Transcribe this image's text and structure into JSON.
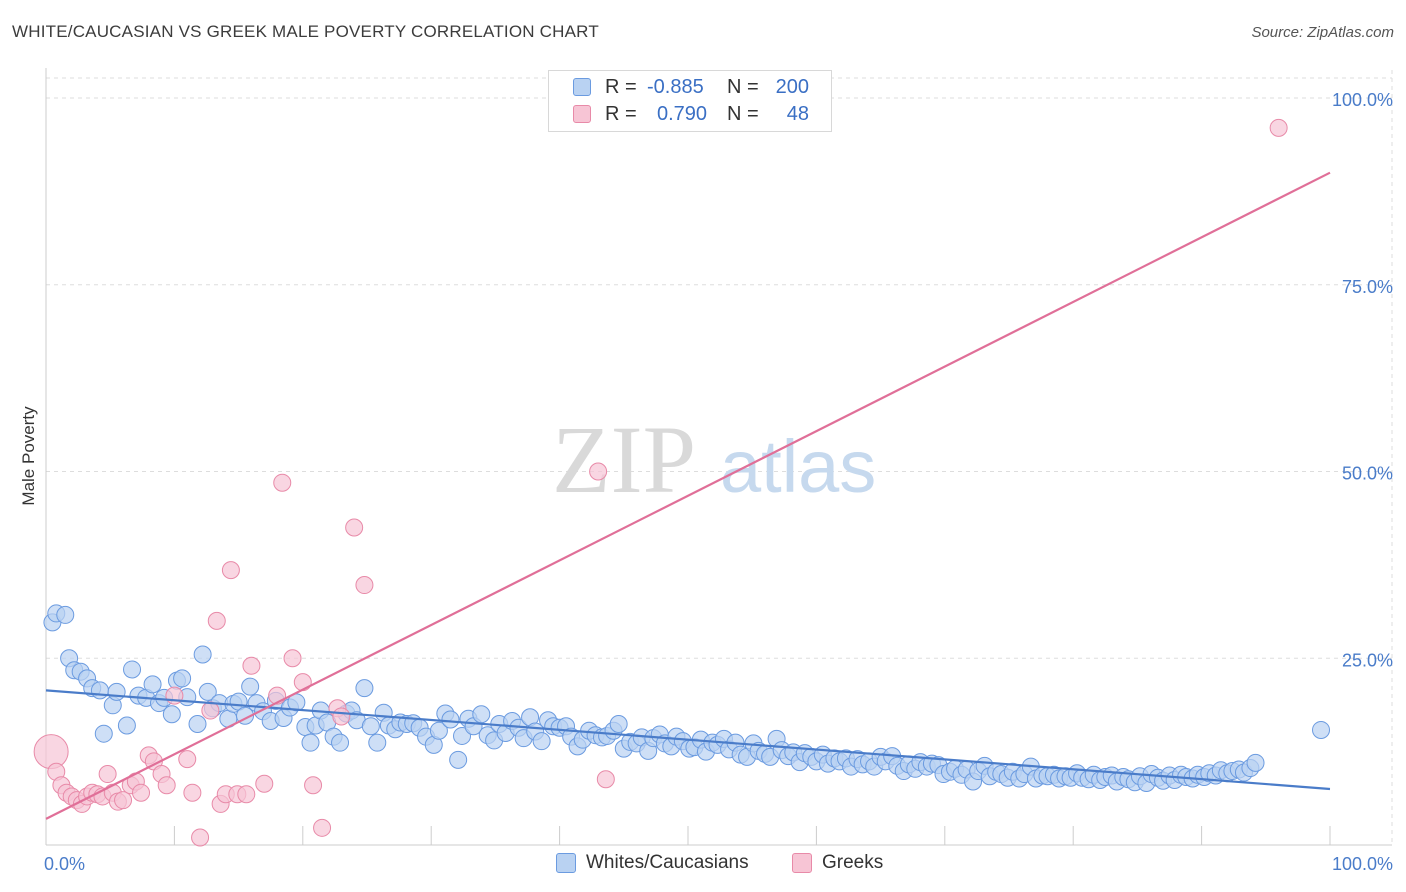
{
  "title": "WHITE/CAUCASIAN VS GREEK MALE POVERTY CORRELATION CHART",
  "source": "Source: ZipAtlas.com",
  "watermark": {
    "zip": "ZIP",
    "atlas": "atlas"
  },
  "legend_top": {
    "rows": [
      {
        "r_label": "R =",
        "r_value": "-0.885",
        "n_label": "N =",
        "n_value": "200",
        "color": "#6b9be0"
      },
      {
        "r_label": "R =",
        "r_value": "0.790",
        "n_label": "N =",
        "n_value": "48",
        "color": "#e88aa8"
      }
    ]
  },
  "legend_bottom": [
    {
      "label": "Whites/Caucasians",
      "fill": "#b9d2f2",
      "stroke": "#6b9be0"
    },
    {
      "label": "Greeks",
      "fill": "#f7c5d5",
      "stroke": "#e88aa8"
    }
  ],
  "chart_data": {
    "type": "scatter",
    "ylabel": "Male Poverty",
    "xlim": [
      0,
      100
    ],
    "ylim": [
      0,
      100
    ],
    "x_tick_labels": [
      "0.0%",
      "100.0%"
    ],
    "y_tick_labels": [
      "25.0%",
      "50.0%",
      "75.0%",
      "100.0%"
    ],
    "y_ticks": [
      25,
      50,
      75,
      100
    ],
    "grid": true,
    "series": [
      {
        "name": "Whites/Caucasians",
        "color": "#4a7cc9",
        "fill": "#b9d2f2",
        "trend": {
          "x": [
            0,
            100
          ],
          "y": [
            20.7,
            7.5
          ]
        },
        "points": [
          [
            0.5,
            29.8
          ],
          [
            0.8,
            31
          ],
          [
            1.5,
            30.8
          ],
          [
            1.8,
            25
          ],
          [
            2.2,
            23.4
          ],
          [
            2.7,
            23.2
          ],
          [
            3.2,
            22.3
          ],
          [
            3.6,
            21
          ],
          [
            4.2,
            20.7
          ],
          [
            4.5,
            14.9
          ],
          [
            5.2,
            18.7
          ],
          [
            5.5,
            20.5
          ],
          [
            6.3,
            16
          ],
          [
            6.7,
            23.5
          ],
          [
            7.2,
            20
          ],
          [
            7.8,
            19.7
          ],
          [
            8.3,
            21.5
          ],
          [
            8.8,
            19
          ],
          [
            9.2,
            19.7
          ],
          [
            9.8,
            17.5
          ],
          [
            10.2,
            22
          ],
          [
            10.6,
            22.3
          ],
          [
            11,
            19.8
          ],
          [
            11.8,
            16.2
          ],
          [
            12.2,
            25.5
          ],
          [
            12.6,
            20.5
          ],
          [
            13,
            18.3
          ],
          [
            13.5,
            19
          ],
          [
            14.2,
            16.9
          ],
          [
            14.6,
            18.9
          ],
          [
            15,
            19.2
          ],
          [
            15.5,
            17.3
          ],
          [
            15.9,
            21.2
          ],
          [
            16.4,
            19
          ],
          [
            16.9,
            17.9
          ],
          [
            17.5,
            16.6
          ],
          [
            17.9,
            19.3
          ],
          [
            18.5,
            17
          ],
          [
            19,
            18.4
          ],
          [
            19.5,
            19.1
          ],
          [
            20.2,
            15.8
          ],
          [
            20.6,
            13.7
          ],
          [
            21,
            16
          ],
          [
            21.4,
            18
          ],
          [
            21.9,
            16.4
          ],
          [
            22.4,
            14.5
          ],
          [
            22.9,
            13.7
          ],
          [
            23.4,
            17.6
          ],
          [
            23.8,
            18
          ],
          [
            24.2,
            16.7
          ],
          [
            24.8,
            21
          ],
          [
            25.3,
            15.9
          ],
          [
            25.8,
            13.7
          ],
          [
            26.3,
            17.7
          ],
          [
            26.7,
            16
          ],
          [
            27.2,
            15.5
          ],
          [
            27.6,
            16.4
          ],
          [
            28.1,
            16.2
          ],
          [
            28.6,
            16.3
          ],
          [
            29.1,
            15.7
          ],
          [
            29.6,
            14.5
          ],
          [
            30.2,
            13.4
          ],
          [
            30.6,
            15.3
          ],
          [
            31.1,
            17.6
          ],
          [
            31.5,
            16.8
          ],
          [
            32.1,
            11.4
          ],
          [
            32.4,
            14.6
          ],
          [
            32.9,
            16.9
          ],
          [
            33.3,
            15.9
          ],
          [
            33.9,
            17.5
          ],
          [
            34.4,
            14.7
          ],
          [
            34.9,
            14
          ],
          [
            35.3,
            16.2
          ],
          [
            35.8,
            15
          ],
          [
            36.3,
            16.6
          ],
          [
            36.8,
            15.7
          ],
          [
            37.2,
            14.3
          ],
          [
            37.7,
            17.1
          ],
          [
            38.1,
            15.2
          ],
          [
            38.6,
            13.9
          ],
          [
            39.1,
            16.7
          ],
          [
            39.5,
            15.9
          ],
          [
            40,
            15.7
          ],
          [
            40.5,
            15.9
          ],
          [
            40.9,
            14.5
          ],
          [
            41.4,
            13.2
          ],
          [
            41.8,
            14.1
          ],
          [
            42.3,
            15.3
          ],
          [
            42.8,
            14.7
          ],
          [
            43.3,
            14.4
          ],
          [
            43.7,
            14.6
          ],
          [
            44.2,
            15.3
          ],
          [
            44.6,
            16.2
          ],
          [
            45,
            12.9
          ],
          [
            45.5,
            13.8
          ],
          [
            46,
            13.6
          ],
          [
            46.4,
            14.4
          ],
          [
            46.9,
            12.6
          ],
          [
            47.3,
            14.3
          ],
          [
            47.8,
            14.8
          ],
          [
            48.2,
            13.6
          ],
          [
            48.7,
            13.2
          ],
          [
            49.1,
            14.5
          ],
          [
            49.6,
            13.9
          ],
          [
            50.1,
            12.9
          ],
          [
            50.5,
            13.1
          ],
          [
            51,
            14.1
          ],
          [
            51.4,
            12.5
          ],
          [
            51.9,
            13.7
          ],
          [
            52.3,
            13.4
          ],
          [
            52.8,
            14.2
          ],
          [
            53.2,
            12.8
          ],
          [
            53.7,
            13.7
          ],
          [
            54.1,
            12.1
          ],
          [
            54.6,
            11.8
          ],
          [
            55.1,
            13.6
          ],
          [
            55.5,
            12.6
          ],
          [
            56,
            12.2
          ],
          [
            56.4,
            11.8
          ],
          [
            56.9,
            14.2
          ],
          [
            57.3,
            12.7
          ],
          [
            57.8,
            11.9
          ],
          [
            58.2,
            12.4
          ],
          [
            58.7,
            11.1
          ],
          [
            59.1,
            12.3
          ],
          [
            59.6,
            11.8
          ],
          [
            60,
            11.2
          ],
          [
            60.5,
            12.1
          ],
          [
            60.9,
            10.9
          ],
          [
            61.4,
            11.6
          ],
          [
            61.8,
            11.2
          ],
          [
            62.3,
            11.6
          ],
          [
            62.7,
            10.5
          ],
          [
            63.2,
            11.5
          ],
          [
            63.6,
            10.8
          ],
          [
            64.1,
            11.2
          ],
          [
            64.5,
            10.5
          ],
          [
            65,
            11.8
          ],
          [
            65.4,
            11.2
          ],
          [
            65.9,
            11.9
          ],
          [
            66.3,
            10.6
          ],
          [
            66.8,
            9.9
          ],
          [
            67.2,
            10.8
          ],
          [
            67.7,
            10.2
          ],
          [
            68.1,
            11.1
          ],
          [
            68.6,
            10.5
          ],
          [
            69,
            10.9
          ],
          [
            69.5,
            10.7
          ],
          [
            69.9,
            9.5
          ],
          [
            70.4,
            9.8
          ],
          [
            70.8,
            10.2
          ],
          [
            71.3,
            9.4
          ],
          [
            71.7,
            10.1
          ],
          [
            72.2,
            8.5
          ],
          [
            72.6,
            9.9
          ],
          [
            73.1,
            10.6
          ],
          [
            73.5,
            9.2
          ],
          [
            74,
            9.8
          ],
          [
            74.4,
            9.5
          ],
          [
            74.9,
            9
          ],
          [
            75.3,
            9.8
          ],
          [
            75.8,
            8.9
          ],
          [
            76.2,
            9.5
          ],
          [
            76.7,
            10.5
          ],
          [
            77.1,
            8.9
          ],
          [
            77.6,
            9.3
          ],
          [
            78,
            9.2
          ],
          [
            78.5,
            9.4
          ],
          [
            78.9,
            8.9
          ],
          [
            79.4,
            9.2
          ],
          [
            79.8,
            9
          ],
          [
            80.3,
            9.6
          ],
          [
            80.7,
            9
          ],
          [
            81.2,
            8.8
          ],
          [
            81.6,
            9.4
          ],
          [
            82.1,
            8.7
          ],
          [
            82.5,
            9.1
          ],
          [
            83,
            9.3
          ],
          [
            83.4,
            8.5
          ],
          [
            83.9,
            9.1
          ],
          [
            84.3,
            8.8
          ],
          [
            84.8,
            8.4
          ],
          [
            85.2,
            9.2
          ],
          [
            85.7,
            8.3
          ],
          [
            86.1,
            9.5
          ],
          [
            86.6,
            9
          ],
          [
            87,
            8.6
          ],
          [
            87.5,
            9.3
          ],
          [
            87.9,
            8.7
          ],
          [
            88.4,
            9.4
          ],
          [
            88.8,
            9.1
          ],
          [
            89.3,
            8.9
          ],
          [
            89.7,
            9.4
          ],
          [
            90.2,
            9.1
          ],
          [
            90.6,
            9.6
          ],
          [
            91.1,
            9.3
          ],
          [
            91.5,
            10
          ],
          [
            92,
            9.6
          ],
          [
            92.4,
            9.9
          ],
          [
            92.9,
            10.1
          ],
          [
            93.3,
            9.7
          ],
          [
            93.8,
            10.3
          ],
          [
            94.2,
            11
          ],
          [
            99.3,
            15.4
          ]
        ]
      },
      {
        "name": "Greeks",
        "color": "#e06f98",
        "fill": "#f7c5d5",
        "trend": {
          "x": [
            0,
            100
          ],
          "y": [
            3.5,
            90
          ]
        },
        "points": [
          [
            0.4,
            12.5
          ],
          [
            0.8,
            9.8
          ],
          [
            1.2,
            8
          ],
          [
            1.6,
            7
          ],
          [
            2,
            6.5
          ],
          [
            2.4,
            6
          ],
          [
            2.8,
            5.5
          ],
          [
            3.2,
            6.5
          ],
          [
            3.6,
            7
          ],
          [
            4,
            6.8
          ],
          [
            4.4,
            6.5
          ],
          [
            4.8,
            9.5
          ],
          [
            5.2,
            7
          ],
          [
            5.6,
            5.8
          ],
          [
            6,
            6
          ],
          [
            6.6,
            8
          ],
          [
            7,
            8.5
          ],
          [
            7.4,
            7
          ],
          [
            8,
            12
          ],
          [
            8.4,
            11.2
          ],
          [
            9,
            9.5
          ],
          [
            9.4,
            8
          ],
          [
            10,
            20
          ],
          [
            11,
            11.5
          ],
          [
            11.4,
            7
          ],
          [
            12,
            1
          ],
          [
            12.8,
            18
          ],
          [
            13.3,
            30
          ],
          [
            13.6,
            5.5
          ],
          [
            14,
            6.8
          ],
          [
            14.4,
            36.8
          ],
          [
            14.9,
            6.8
          ],
          [
            15.6,
            6.8
          ],
          [
            16,
            24
          ],
          [
            17,
            8.2
          ],
          [
            18,
            20
          ],
          [
            18.4,
            48.5
          ],
          [
            19.2,
            25
          ],
          [
            20,
            21.8
          ],
          [
            20.8,
            8
          ],
          [
            21.5,
            2.3
          ],
          [
            22.7,
            18.3
          ],
          [
            23,
            17.2
          ],
          [
            24,
            42.5
          ],
          [
            24.8,
            34.8
          ],
          [
            43,
            50
          ],
          [
            43.6,
            8.8
          ],
          [
            96,
            96
          ]
        ]
      }
    ]
  }
}
